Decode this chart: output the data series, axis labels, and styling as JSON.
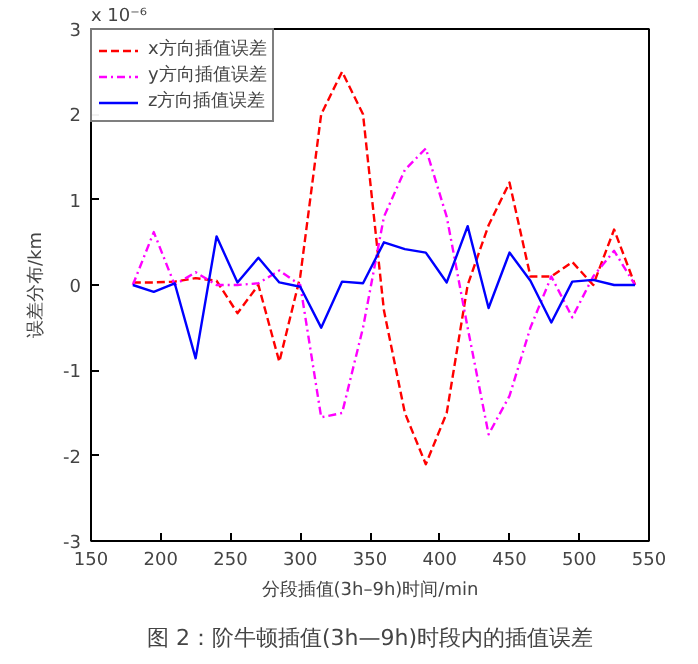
{
  "chart_data": {
    "type": "line",
    "xlabel": "分段插值(3h–9h)时间/min",
    "ylabel": "误差分布/km",
    "annotations": [
      "x 10⁻⁶",
      "图 2：阶牛顿插值(3h—9h)时段内的插值误差"
    ],
    "x": [
      180,
      195,
      210,
      225,
      240,
      255,
      270,
      285,
      300,
      315,
      330,
      345,
      360,
      375,
      390,
      405,
      420,
      435,
      450,
      465,
      480,
      495,
      510,
      525,
      540
    ],
    "series": [
      {
        "name": "x方向插值误差",
        "color": "#ff0000",
        "line_style": "dashed",
        "values": [
          0.03,
          0.03,
          0.04,
          0.08,
          0.05,
          -0.33,
          0.0,
          -0.9,
          0.1,
          2.0,
          2.5,
          2.0,
          -0.3,
          -1.5,
          -2.1,
          -1.5,
          0.0,
          0.7,
          1.2,
          0.1,
          0.1,
          0.27,
          0.0,
          0.65,
          0.0
        ]
      },
      {
        "name": "y方向插值误差",
        "color": "#ff00ff",
        "line_style": "dashdot",
        "values": [
          0.0,
          0.62,
          0.0,
          0.15,
          0.0,
          0.0,
          0.02,
          0.17,
          0.0,
          -1.55,
          -1.5,
          -0.5,
          0.8,
          1.35,
          1.6,
          0.8,
          -0.5,
          -1.75,
          -1.3,
          -0.5,
          0.1,
          -0.38,
          0.1,
          0.4,
          0.0
        ]
      },
      {
        "name": "z方向插值误差",
        "color": "#0000ff",
        "line_style": "solid",
        "values": [
          0.0,
          -0.08,
          0.02,
          -0.86,
          0.57,
          0.03,
          0.32,
          0.03,
          -0.02,
          -0.5,
          0.04,
          0.02,
          0.5,
          0.42,
          0.38,
          0.03,
          0.69,
          -0.27,
          0.38,
          0.05,
          -0.44,
          0.04,
          0.06,
          0.0,
          0.0
        ]
      }
    ],
    "xlim": [
      150,
      550
    ],
    "ylim": [
      -3,
      3
    ],
    "xticks": [
      150,
      200,
      250,
      300,
      350,
      400,
      450,
      500,
      550
    ],
    "yticks": [
      -3,
      -2,
      -1,
      0,
      1,
      2,
      3
    ],
    "grid": false,
    "legend": "top left"
  }
}
